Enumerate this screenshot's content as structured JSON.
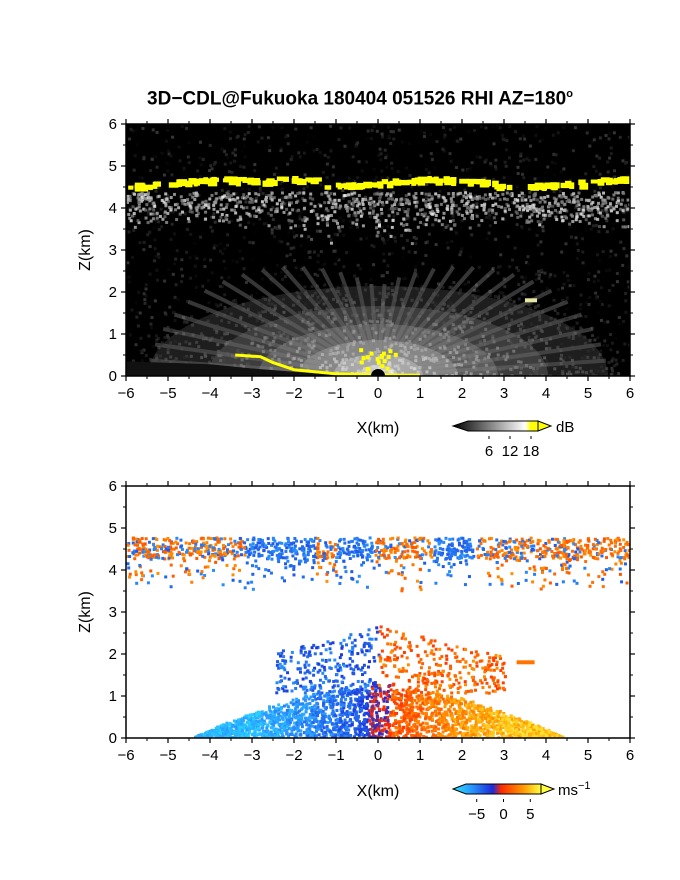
{
  "chart_data": [
    {
      "type": "heatmap",
      "title": "3D−CDL@Fukuoka 180404 051526 RHI AZ=180",
      "title_superscript": "o",
      "panel": "reflectivity",
      "xlabel": "X(km)",
      "ylabel": "Z(km)",
      "xlim": [
        -6,
        6
      ],
      "ylim": [
        0,
        6
      ],
      "x_ticks": [
        "−6",
        "−5",
        "−4",
        "−3",
        "−2",
        "−1",
        "0",
        "1",
        "2",
        "3",
        "4",
        "5",
        "6"
      ],
      "y_ticks": [
        "0",
        "1",
        "2",
        "3",
        "4",
        "5",
        "6"
      ],
      "colorbar": {
        "unit": "dB",
        "ticks": [
          "6",
          "12",
          "18"
        ],
        "range": [
          0,
          20
        ]
      },
      "features": {
        "cloud_top_layer_km": [
          4.4,
          4.7
        ],
        "near_ground_fan_top_km": 2.0,
        "saturation_color": "#ffff00"
      }
    },
    {
      "type": "heatmap",
      "panel": "doppler_velocity",
      "xlabel": "X(km)",
      "ylabel": "Z(km)",
      "xlim": [
        -6,
        6
      ],
      "ylim": [
        0,
        6
      ],
      "x_ticks": [
        "−6",
        "−5",
        "−4",
        "−3",
        "−2",
        "−1",
        "0",
        "1",
        "2",
        "3",
        "4",
        "5",
        "6"
      ],
      "y_ticks": [
        "0",
        "1",
        "2",
        "3",
        "4",
        "5",
        "6"
      ],
      "colorbar": {
        "unit": "ms",
        "unit_superscript": "−1",
        "ticks": [
          "−5",
          "0",
          "5"
        ],
        "range": [
          -7,
          7
        ]
      },
      "features": {
        "cloud_layer_km": [
          4.3,
          4.8
        ],
        "boundary_layer_top_km": 1.2,
        "negative_color": "#1f6fff",
        "positive_color": "#ff3a00"
      }
    }
  ]
}
